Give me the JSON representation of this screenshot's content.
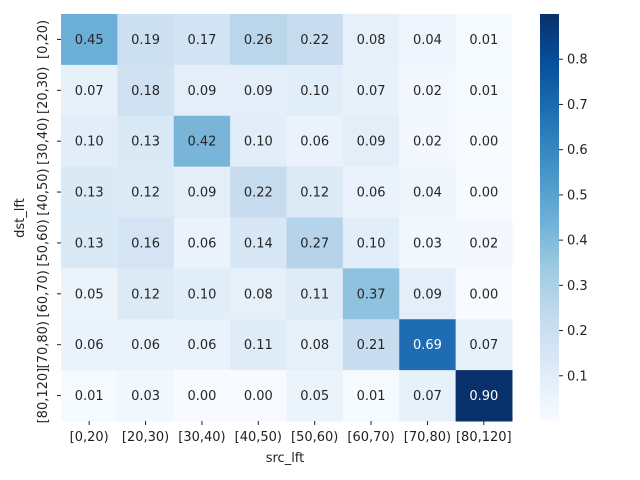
{
  "chart_data": {
    "type": "heatmap",
    "xlabel": "src_lft",
    "ylabel": "dst_lft",
    "x_categories": [
      "[0,20)",
      "[20,30)",
      "[30,40)",
      "[40,50)",
      "[50,60)",
      "[60,70)",
      "[70,80)",
      "[80,120]"
    ],
    "y_categories": [
      "[0,20)",
      "[20,30)",
      "[30,40)",
      "[40,50)",
      "[50,60)",
      "[60,70)",
      "[70,80)",
      "[80,120]"
    ],
    "values": [
      [
        0.45,
        0.19,
        0.17,
        0.26,
        0.22,
        0.08,
        0.04,
        0.01
      ],
      [
        0.07,
        0.18,
        0.09,
        0.09,
        0.1,
        0.07,
        0.02,
        0.01
      ],
      [
        0.1,
        0.13,
        0.42,
        0.1,
        0.06,
        0.09,
        0.02,
        0.0
      ],
      [
        0.13,
        0.12,
        0.09,
        0.22,
        0.12,
        0.06,
        0.04,
        0.0
      ],
      [
        0.13,
        0.16,
        0.06,
        0.14,
        0.27,
        0.1,
        0.03,
        0.02
      ],
      [
        0.05,
        0.12,
        0.1,
        0.08,
        0.11,
        0.37,
        0.09,
        0.0
      ],
      [
        0.06,
        0.06,
        0.06,
        0.11,
        0.08,
        0.21,
        0.69,
        0.07
      ],
      [
        0.01,
        0.03,
        0.0,
        0.0,
        0.05,
        0.01,
        0.07,
        0.9
      ]
    ],
    "value_format": "2 decimals",
    "colormap": "Blues",
    "colormap_stops": [
      "#f7fbff",
      "#deebf7",
      "#c6dbef",
      "#9ecae1",
      "#6baed6",
      "#4292c6",
      "#2171b5",
      "#08519c",
      "#08306b"
    ],
    "vmin": 0.0,
    "vmax": 0.9,
    "colorbar_ticks": [
      0.1,
      0.2,
      0.3,
      0.4,
      0.5,
      0.6,
      0.7,
      0.8
    ],
    "colorbar_placement": "right",
    "grid": false
  }
}
